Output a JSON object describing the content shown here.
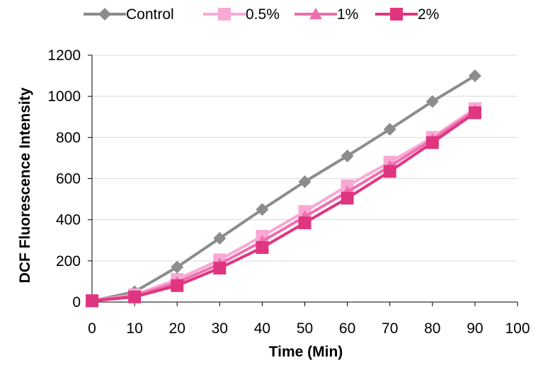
{
  "chart_data": {
    "type": "line",
    "title": "",
    "xlabel": "Time (Min)",
    "ylabel": "DCF Fluorescence Intensity",
    "x": [
      0,
      10,
      20,
      30,
      40,
      50,
      60,
      70,
      80,
      90
    ],
    "xlim": [
      0,
      100
    ],
    "ylim": [
      0,
      1200
    ],
    "xticks": [
      "0",
      "10",
      "20",
      "30",
      "40",
      "50",
      "60",
      "70",
      "80",
      "90",
      "100"
    ],
    "yticks": [
      "0",
      "200",
      "400",
      "600",
      "800",
      "1000",
      "1200"
    ],
    "grid": "horizontal",
    "legend": "top",
    "series": [
      {
        "name": "Control",
        "color": "#8c8c8c",
        "marker": "diamond",
        "values": [
          5,
          50,
          170,
          310,
          450,
          585,
          710,
          840,
          975,
          1100
        ]
      },
      {
        "name": "0.5%",
        "color": "#f9a8d4",
        "marker": "square",
        "values": [
          8,
          35,
          110,
          205,
          320,
          440,
          565,
          680,
          800,
          940
        ]
      },
      {
        "name": "1%",
        "color": "#f06daf",
        "marker": "triangle",
        "values": [
          7,
          30,
          95,
          185,
          295,
          415,
          535,
          660,
          790,
          930
        ]
      },
      {
        "name": "2%",
        "color": "#e0357f",
        "marker": "square",
        "values": [
          6,
          25,
          80,
          165,
          265,
          385,
          505,
          635,
          775,
          920
        ]
      }
    ]
  }
}
